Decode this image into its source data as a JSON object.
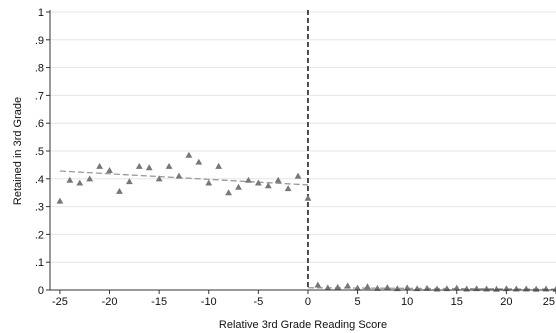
{
  "chart_data": {
    "type": "scatter",
    "xlabel": "Relative 3rd Grade Reading Score",
    "ylabel": "Retained in 3rd Grade",
    "xlim": [
      -26,
      25
    ],
    "ylim": [
      0,
      1
    ],
    "x_ticks": [
      -25,
      -20,
      -15,
      -10,
      -5,
      0,
      5,
      10,
      15,
      20,
      25
    ],
    "x_tick_labels": [
      "-25",
      "-20",
      "-15",
      "-10",
      "-5",
      "0",
      "5",
      "10",
      "15",
      "20",
      "25"
    ],
    "y_ticks": [
      0,
      0.1,
      0.2,
      0.3,
      0.4,
      0.5,
      0.6,
      0.7,
      0.8,
      0.9,
      1
    ],
    "y_tick_labels": [
      "0",
      ".1",
      ".2",
      ".3",
      ".4",
      ".5",
      ".6",
      ".7",
      ".8",
      ".9",
      "1"
    ],
    "grid": true,
    "cutoff_x": 0,
    "marker": "triangle",
    "colors": {
      "marker": "#777777",
      "fit_line": "#999999",
      "cutoff_line": "#222222",
      "grid": "#e6e6e6",
      "axis": "#333333"
    },
    "points": [
      {
        "x": -25,
        "y": 0.32
      },
      {
        "x": -24,
        "y": 0.395
      },
      {
        "x": -23,
        "y": 0.385
      },
      {
        "x": -22,
        "y": 0.4
      },
      {
        "x": -21,
        "y": 0.445
      },
      {
        "x": -20,
        "y": 0.43
      },
      {
        "x": -19,
        "y": 0.355
      },
      {
        "x": -18,
        "y": 0.39
      },
      {
        "x": -17,
        "y": 0.445
      },
      {
        "x": -16,
        "y": 0.44
      },
      {
        "x": -15,
        "y": 0.4
      },
      {
        "x": -14,
        "y": 0.445
      },
      {
        "x": -13,
        "y": 0.41
      },
      {
        "x": -12,
        "y": 0.485
      },
      {
        "x": -11,
        "y": 0.46
      },
      {
        "x": -10,
        "y": 0.385
      },
      {
        "x": -9,
        "y": 0.445
      },
      {
        "x": -8,
        "y": 0.35
      },
      {
        "x": -7,
        "y": 0.37
      },
      {
        "x": -6,
        "y": 0.395
      },
      {
        "x": -5,
        "y": 0.385
      },
      {
        "x": -4,
        "y": 0.375
      },
      {
        "x": -3,
        "y": 0.395
      },
      {
        "x": -2,
        "y": 0.365
      },
      {
        "x": -1,
        "y": 0.41
      },
      {
        "x": 0,
        "y": 0.33
      },
      {
        "x": 1,
        "y": 0.018
      },
      {
        "x": 2,
        "y": 0.008
      },
      {
        "x": 3,
        "y": 0.01
      },
      {
        "x": 4,
        "y": 0.015
      },
      {
        "x": 5,
        "y": 0.007
      },
      {
        "x": 6,
        "y": 0.012
      },
      {
        "x": 7,
        "y": 0.006
      },
      {
        "x": 8,
        "y": 0.009
      },
      {
        "x": 9,
        "y": 0.005
      },
      {
        "x": 10,
        "y": 0.008
      },
      {
        "x": 11,
        "y": 0.005
      },
      {
        "x": 12,
        "y": 0.006
      },
      {
        "x": 13,
        "y": 0.004
      },
      {
        "x": 14,
        "y": 0.005
      },
      {
        "x": 15,
        "y": 0.007
      },
      {
        "x": 16,
        "y": 0.004
      },
      {
        "x": 17,
        "y": 0.005
      },
      {
        "x": 18,
        "y": 0.004
      },
      {
        "x": 19,
        "y": 0.003
      },
      {
        "x": 20,
        "y": 0.005
      },
      {
        "x": 21,
        "y": 0.004
      },
      {
        "x": 22,
        "y": 0.004
      },
      {
        "x": 23,
        "y": 0.003
      },
      {
        "x": 24,
        "y": 0.004
      },
      {
        "x": 25,
        "y": 0.003
      }
    ],
    "fit_lines": [
      {
        "x": [
          -25,
          0
        ],
        "y": [
          0.428,
          0.378
        ]
      },
      {
        "x": [
          0,
          25
        ],
        "y": [
          0.008,
          0.003
        ]
      }
    ]
  }
}
